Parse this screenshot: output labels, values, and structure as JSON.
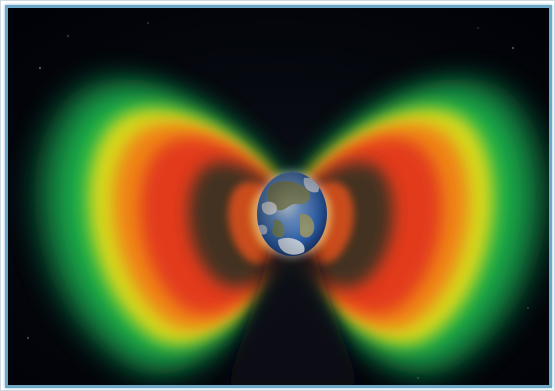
{
  "image": {
    "subject": "radiation-belts-around-earth",
    "colors": {
      "space": "#02030a",
      "frame_border": "#6fa8c7",
      "outer_belt": [
        "#00a046",
        "#4fd22a",
        "#f0e21a",
        "#f08a12",
        "#e8361c"
      ],
      "inner_belt": "#e0401e",
      "earth_ocean": "#2f6fc4",
      "earth_land": "#9a9a6a",
      "earth_cloud": "#f2f4f6"
    }
  }
}
